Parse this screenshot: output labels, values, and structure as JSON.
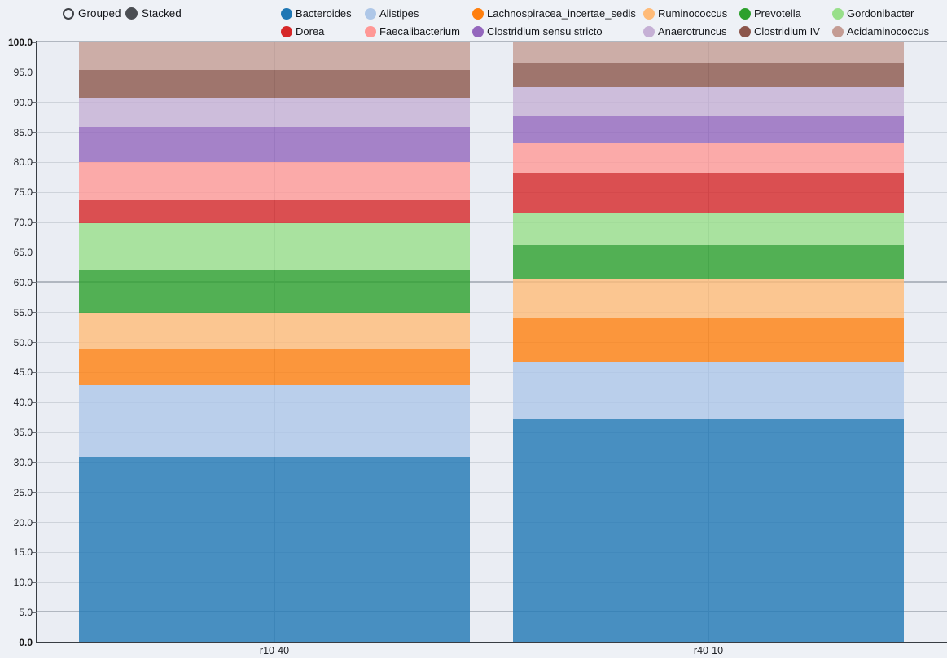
{
  "controls": {
    "grouped_label": "Grouped",
    "stacked_label": "Stacked",
    "selected": "Stacked"
  },
  "chart_data": {
    "type": "bar",
    "mode": "stacked",
    "title": "",
    "xlabel": "",
    "ylabel": "",
    "categories": [
      "r10-40",
      "r40-10"
    ],
    "series": [
      {
        "name": "Bacteroides",
        "color": "#1f77b4",
        "values": [
          30.9,
          37.3
        ]
      },
      {
        "name": "Alistipes",
        "color": "#aec7e8",
        "values": [
          12.0,
          9.4
        ]
      },
      {
        "name": "Lachnospiracea_incertae_sedis",
        "color": "#ff7f0e",
        "values": [
          5.9,
          7.4
        ]
      },
      {
        "name": "Ruminococcus",
        "color": "#ffbb78",
        "values": [
          6.2,
          6.5
        ]
      },
      {
        "name": "Prevotella",
        "color": "#2ca02c",
        "values": [
          7.2,
          5.6
        ]
      },
      {
        "name": "Gordonibacter",
        "color": "#98df8a",
        "values": [
          7.7,
          5.4
        ]
      },
      {
        "name": "Dorea",
        "color": "#d62728",
        "values": [
          3.9,
          6.6
        ]
      },
      {
        "name": "Faecalibacterium",
        "color": "#ff9896",
        "values": [
          6.2,
          5.0
        ]
      },
      {
        "name": "Clostridium sensu stricto",
        "color": "#9467bd",
        "values": [
          5.9,
          4.6
        ]
      },
      {
        "name": "Anaerotruncus",
        "color": "#c5b0d5",
        "values": [
          4.9,
          4.8
        ]
      },
      {
        "name": "Clostridium IV",
        "color": "#8c564b",
        "values": [
          4.0,
          4.0
        ]
      },
      {
        "name": "Acidaminococcus",
        "color": "#c49c94",
        "values": [
          4.6,
          3.4
        ]
      }
    ],
    "ylim": [
      0,
      100
    ],
    "ytick_step": 5,
    "ytick_decimals": 1,
    "grid": true,
    "emphasized_gridlines": [
      100,
      60,
      5
    ],
    "bar_opacity": 0.8,
    "legend_position": "top"
  },
  "colors": {
    "background": "#eef1f6",
    "plot_background": "#eaedf3",
    "gridline": "#ced3da",
    "gridline_emphasis": "#b1b7c0",
    "category_line": "#b6bcc5",
    "axis": "#383d43",
    "text": "#16181d",
    "radio_selected_fill": "#4b4e53"
  }
}
